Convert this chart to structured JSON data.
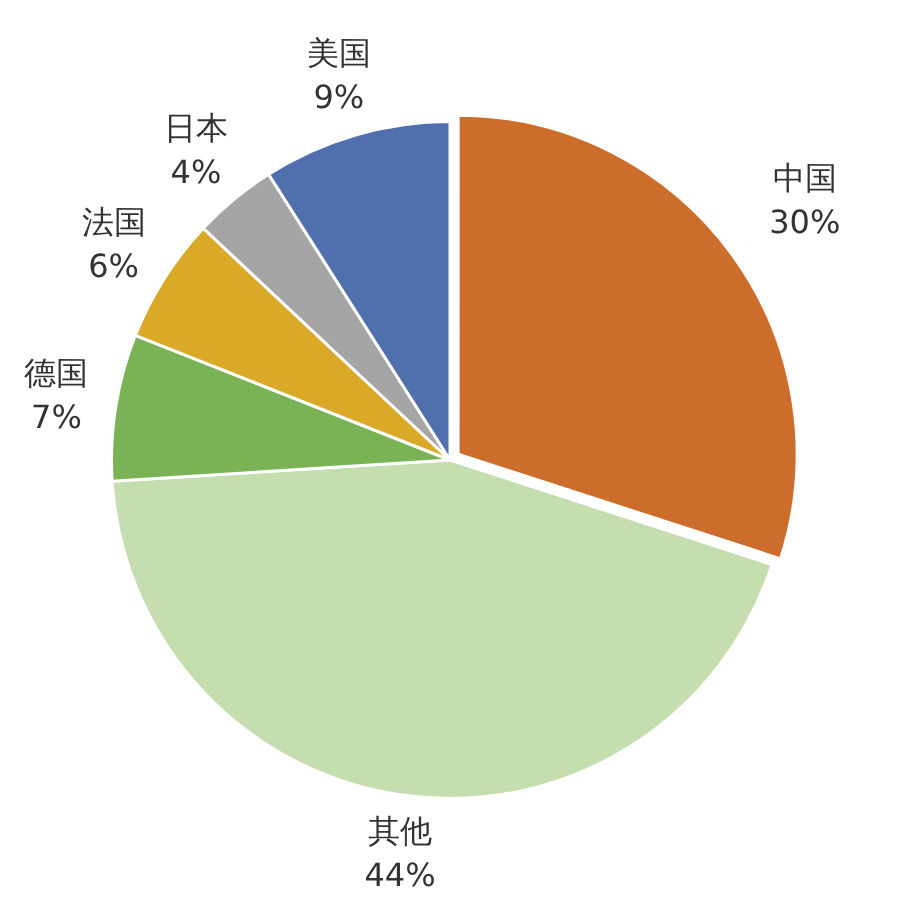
{
  "chart_data": {
    "type": "pie",
    "categories": [
      "中国",
      "其他",
      "德国",
      "法国",
      "日本",
      "美国"
    ],
    "values": [
      30,
      44,
      7,
      6,
      4,
      9
    ],
    "value_labels": [
      "30%",
      "44%",
      "7%",
      "6%",
      "4%",
      "9%"
    ],
    "colors": [
      "#cc6d2c",
      "#c5deb0",
      "#7ab356",
      "#d9a927",
      "#a5a5a5",
      "#4f6fad"
    ],
    "legend": false
  }
}
